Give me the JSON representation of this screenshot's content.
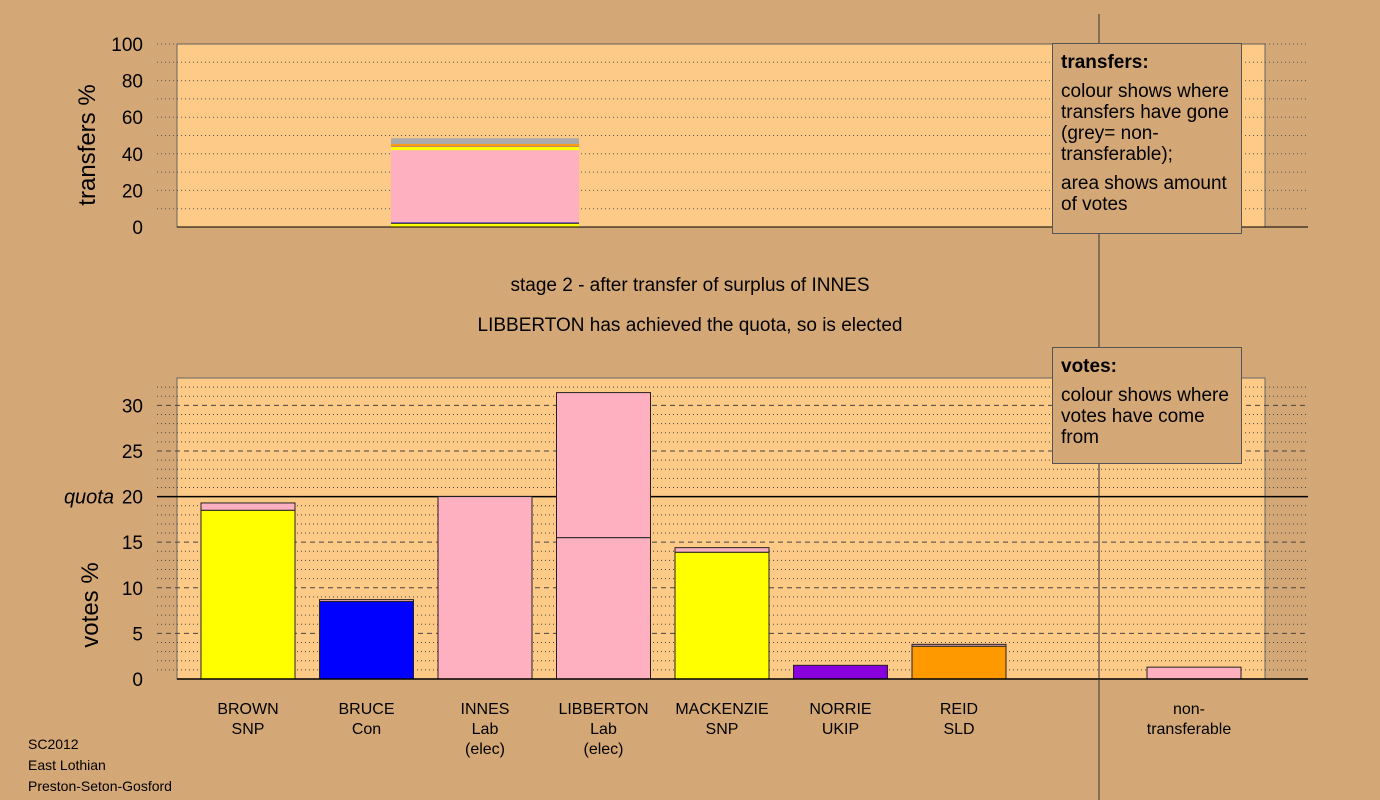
{
  "stage_caption": "stage 2 - after transfer of surplus of INNES",
  "elected_caption": "LIBBERTON has achieved the quota, so is elected",
  "footer": [
    "SC2012",
    "East Lothian",
    "Preston-Seton-Gosford"
  ],
  "legend_transfers": {
    "title": "transfers:",
    "line1": "colour shows where transfers have gone (grey= non-transferable);",
    "line2": "area shows amount of votes"
  },
  "legend_votes": {
    "title": "votes:",
    "line1": "colour shows where votes have come from"
  },
  "colors": {
    "background": "#d4a876",
    "plot": "#fdca88",
    "SNP": "#ffff00",
    "Con": "#0000ff",
    "Lab": "#ffb0c0",
    "UKIP": "#8800dd",
    "SLD": "#ff9900",
    "nontransferable": "#aaaaaa"
  },
  "chart_data": [
    {
      "type": "bar",
      "ylabel": "transfers %",
      "ylim": [
        0,
        100
      ],
      "yticks": [
        "0",
        "20",
        "40",
        "60",
        "80",
        "100"
      ],
      "stacked": true,
      "source_column": 2,
      "segments": [
        {
          "colorKey": "SNP",
          "value": 2
        },
        {
          "colorKey": "Con",
          "value": 0.5
        },
        {
          "colorKey": "Lab",
          "value": 39.5
        },
        {
          "colorKey": "SNP",
          "value": 2
        },
        {
          "colorKey": "UKIP",
          "value": 0.3
        },
        {
          "colorKey": "SLD",
          "value": 1
        },
        {
          "colorKey": "nontransferable",
          "value": 3.2
        }
      ]
    },
    {
      "type": "bar",
      "ylabel": "votes %",
      "ylim": [
        0,
        33
      ],
      "yticks": [
        "0",
        "5",
        "10",
        "15",
        "20",
        "25",
        "30"
      ],
      "quota": 20,
      "quota_label": "quota",
      "stacked": true,
      "candidates": [
        {
          "name": "BROWN",
          "party": "SNP",
          "note": "",
          "segments": [
            {
              "colorKey": "SNP",
              "value": 18.5
            },
            {
              "colorKey": "Lab",
              "value": 0.8
            }
          ]
        },
        {
          "name": "BRUCE",
          "party": "Con",
          "note": "",
          "segments": [
            {
              "colorKey": "Con",
              "value": 8.5
            },
            {
              "colorKey": "Lab",
              "value": 0.2
            }
          ]
        },
        {
          "name": "INNES",
          "party": "Lab",
          "note": "(elec)",
          "segments": [
            {
              "colorKey": "Lab",
              "value": 20
            }
          ]
        },
        {
          "name": "LIBBERTON",
          "party": "Lab",
          "note": "(elec)",
          "segments": [
            {
              "colorKey": "Lab",
              "value": 15.5
            },
            {
              "colorKey": "Lab",
              "value": 15.9
            }
          ]
        },
        {
          "name": "MACKENZIE",
          "party": "SNP",
          "note": "",
          "segments": [
            {
              "colorKey": "SNP",
              "value": 13.9
            },
            {
              "colorKey": "Lab",
              "value": 0.5
            }
          ]
        },
        {
          "name": "NORRIE",
          "party": "UKIP",
          "note": "",
          "segments": [
            {
              "colorKey": "UKIP",
              "value": 1.5
            }
          ]
        },
        {
          "name": "REID",
          "party": "SLD",
          "note": "",
          "segments": [
            {
              "colorKey": "SLD",
              "value": 3.6
            },
            {
              "colorKey": "Lab",
              "value": 0.2
            }
          ]
        }
      ],
      "nontransferable": {
        "label": "non-transferable",
        "segments": [
          {
            "colorKey": "Lab",
            "value": 1.3
          }
        ]
      }
    }
  ]
}
